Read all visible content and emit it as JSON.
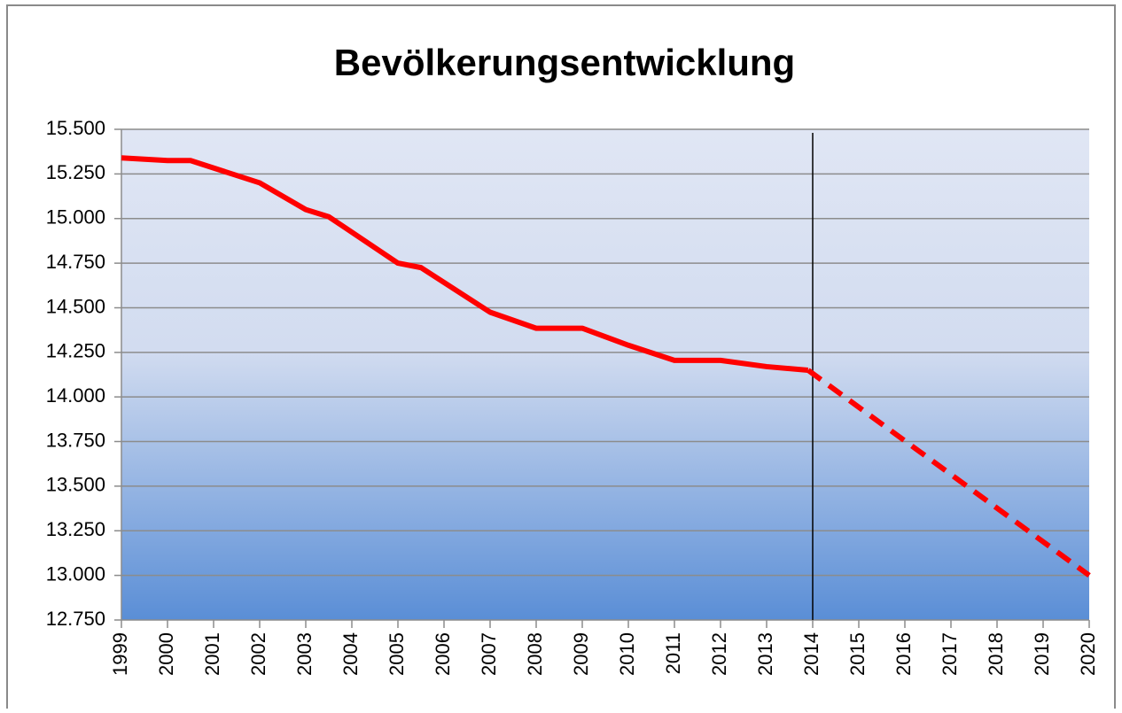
{
  "chart_data": {
    "type": "line",
    "title": "Bevölkerungsentwicklung",
    "xlim": [
      1999,
      2020
    ],
    "xticks": [
      1999,
      2000,
      2001,
      2002,
      2003,
      2004,
      2005,
      2006,
      2007,
      2008,
      2009,
      2010,
      2011,
      2012,
      2013,
      2014,
      2015,
      2016,
      2017,
      2018,
      2019,
      2020
    ],
    "ylim": [
      12.75,
      15.5
    ],
    "yticks": [
      {
        "value": 12.75,
        "label": "12.750"
      },
      {
        "value": 13.0,
        "label": "13.000"
      },
      {
        "value": 13.25,
        "label": "13.250"
      },
      {
        "value": 13.5,
        "label": "13.500"
      },
      {
        "value": 13.75,
        "label": "13.750"
      },
      {
        "value": 14.0,
        "label": "14.000"
      },
      {
        "value": 14.25,
        "label": "14.250"
      },
      {
        "value": 14.5,
        "label": "14.500"
      },
      {
        "value": 14.75,
        "label": "14.750"
      },
      {
        "value": 15.0,
        "label": "15.000"
      },
      {
        "value": 15.25,
        "label": "15.250"
      },
      {
        "value": 15.5,
        "label": "15.500"
      }
    ],
    "grid": true,
    "vline_x": 2014,
    "series": [
      {
        "color": "#ff0000",
        "dashed": false,
        "x": [
          1999,
          2000,
          2000.5,
          2002,
          2003,
          2003.5,
          2005,
          2005.5,
          2007,
          2008,
          2009,
          2010,
          2011,
          2012,
          2013,
          2013.9
        ],
        "values": [
          15.34,
          15.325,
          15.325,
          15.2,
          15.05,
          15.01,
          14.75,
          14.725,
          14.475,
          14.385,
          14.385,
          14.29,
          14.205,
          14.205,
          14.17,
          14.15
        ]
      },
      {
        "color": "#ff0000",
        "dashed": true,
        "x": [
          2013.9,
          2020
        ],
        "values": [
          14.15,
          13.0
        ]
      }
    ]
  }
}
